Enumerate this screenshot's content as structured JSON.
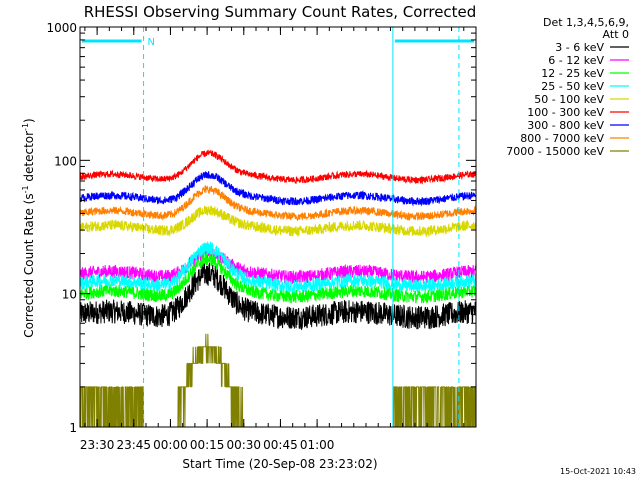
{
  "chart_data": {
    "type": "line",
    "title": "RHESSI Observing Summary Count Rates, Corrected",
    "ylabel_main": "Corrected Count Rate (s",
    "ylabel_sup1": "-1",
    "ylabel_mid": " detector",
    "ylabel_sup2": "-1",
    "ylabel_end": ")",
    "xlabel": "Start Time (20-Sep-08 23:23:02)",
    "timestamp": "15-Oct-2021 10:43",
    "x_unit": "minutes since start",
    "x_range": [
      0,
      162
    ],
    "y_scale": "log",
    "y_range": [
      1,
      1000
    ],
    "x_ticks": [
      {
        "label": "23:30",
        "value": 7
      },
      {
        "label": "23:45",
        "value": 22
      },
      {
        "label": "00:00",
        "value": 37
      },
      {
        "label": "00:15",
        "value": 52
      },
      {
        "label": "00:30",
        "value": 67
      },
      {
        "label": "00:45",
        "value": 82
      },
      {
        "label": "01:00",
        "value": 97
      }
    ],
    "y_ticks": [
      {
        "label": "1",
        "value": 1
      },
      {
        "label": "10",
        "value": 10
      },
      {
        "label": "100",
        "value": 100
      },
      {
        "label": "1000",
        "value": 1000
      }
    ],
    "legend_header": [
      "Det 1,3,4,5,6,9,",
      "Att 0"
    ],
    "series": [
      {
        "name": "3 - 6 keV",
        "color": "#000000",
        "base": 7,
        "peak": 14,
        "profile": "gauss",
        "center": 52,
        "width": 9,
        "noise": 0.09
      },
      {
        "name": "6 - 12 keV",
        "color": "#ff00ff",
        "base": 14,
        "peak": 20,
        "profile": "gauss",
        "center": 52,
        "width": 9,
        "noise": 0.05
      },
      {
        "name": "12 - 25 keV",
        "color": "#00ff00",
        "base": 10,
        "peak": 18,
        "profile": "gauss",
        "center": 52,
        "width": 9,
        "noise": 0.05
      },
      {
        "name": "25 - 50 keV",
        "color": "#00ffff",
        "base": 12,
        "peak": 22,
        "profile": "gauss",
        "center": 52,
        "width": 9,
        "noise": 0.05
      },
      {
        "name": "50 - 100 keV",
        "color": "#d8d800",
        "base": 31,
        "peak": 42,
        "profile": "gauss",
        "center": 52,
        "width": 9,
        "noise": 0.04
      },
      {
        "name": "100 - 300 keV",
        "color": "#ff0000",
        "base": 75,
        "peak": 112,
        "profile": "gauss",
        "center": 52,
        "width": 9,
        "noise": 0.025
      },
      {
        "name": "300 - 800 keV",
        "color": "#0000ff",
        "base": 52,
        "peak": 77,
        "profile": "gauss",
        "center": 52,
        "width": 9,
        "noise": 0.03
      },
      {
        "name": "800 - 7000 keV",
        "color": "#ff8000",
        "base": 40,
        "peak": 60,
        "profile": "gauss",
        "center": 52,
        "width": 9,
        "noise": 0.03
      },
      {
        "name": "7000 - 15000 keV",
        "color": "#808000",
        "base": 1,
        "peak": 4,
        "profile": "steps",
        "center": 52,
        "width": 9,
        "noise": 0.0
      }
    ],
    "annotations": {
      "night_bar_color": "#00e5ff",
      "night_label": "N",
      "night_intervals": [
        [
          0,
          26
        ],
        [
          128,
          162
        ]
      ],
      "solid_vlines": [
        0,
        128
      ],
      "dashed_vlines": [
        26,
        155
      ]
    }
  }
}
